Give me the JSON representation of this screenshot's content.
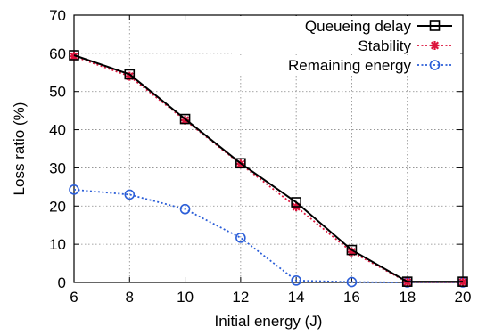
{
  "chart_data": {
    "type": "line",
    "xlabel": "Initial energy (J)",
    "ylabel": "Loss ratio (%)",
    "x": [
      6,
      8,
      10,
      12,
      14,
      16,
      18,
      20
    ],
    "xticks": [
      6,
      8,
      10,
      12,
      14,
      16,
      18,
      20
    ],
    "yticks": [
      0,
      10,
      20,
      30,
      40,
      50,
      60,
      70
    ],
    "xlim": [
      6,
      20
    ],
    "ylim": [
      0,
      70
    ],
    "grid": true,
    "legend_position": "top-right",
    "series": [
      {
        "name": "Queueing delay",
        "values": [
          59.5,
          54.5,
          42.8,
          31.2,
          21.0,
          8.5,
          0.2,
          0.2
        ],
        "color": "#000000",
        "marker": "square-open",
        "line": "solid"
      },
      {
        "name": "Stability",
        "values": [
          59.2,
          54.0,
          42.5,
          31.0,
          19.8,
          8.0,
          0.1,
          0.1
        ],
        "color": "#dc143c",
        "marker": "star",
        "line": "dotted"
      },
      {
        "name": "Remaining energy",
        "values": [
          24.3,
          23.0,
          19.2,
          11.7,
          0.5,
          0.1,
          0.0,
          0.0
        ],
        "color": "#2b5ed8",
        "marker": "circle-open",
        "line": "dotted"
      }
    ]
  }
}
